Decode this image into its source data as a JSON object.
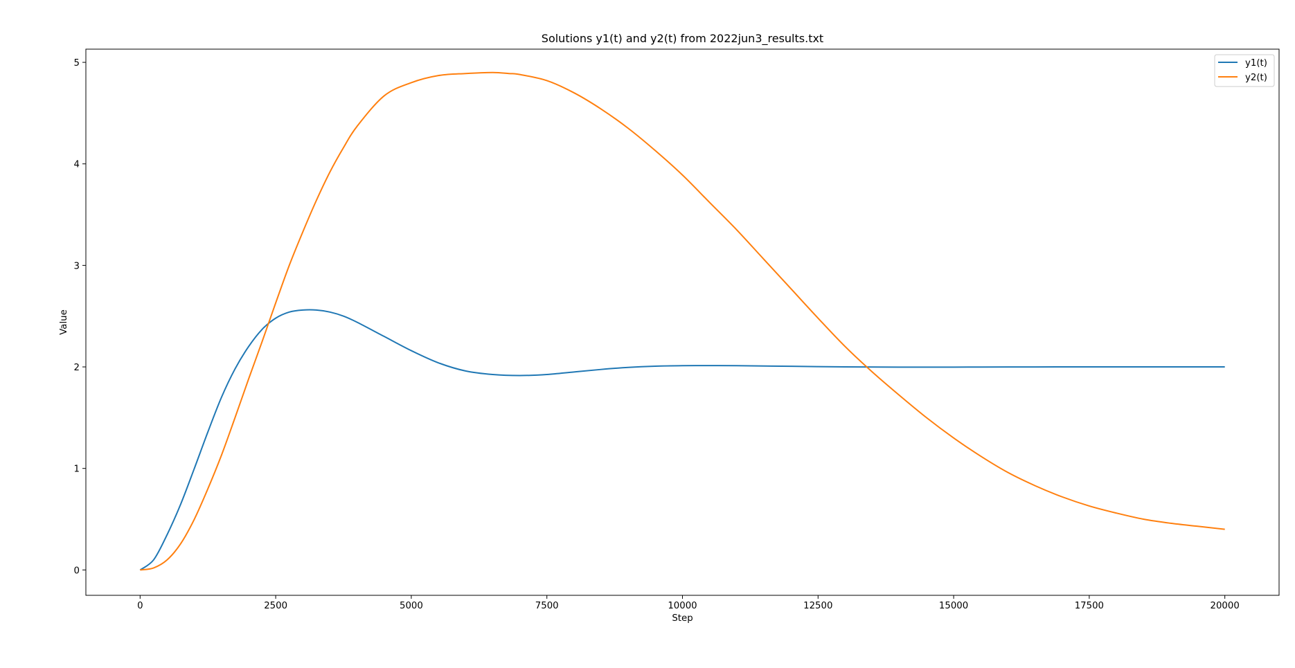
{
  "chart_data": {
    "type": "line",
    "title": "Solutions y1(t) and y2(t) from 2022jun3_results.txt",
    "xlabel": "Step",
    "ylabel": "Value",
    "xlim": [
      -1000,
      21000
    ],
    "ylim": [
      -0.25,
      5.13
    ],
    "xticks": [
      0,
      2500,
      5000,
      7500,
      10000,
      12500,
      15000,
      17500,
      20000
    ],
    "yticks": [
      0,
      1,
      2,
      3,
      4,
      5
    ],
    "grid": false,
    "legend_position": "top-right",
    "series": [
      {
        "name": "y1(t)",
        "color": "#1f77b4",
        "x": [
          0,
          250,
          500,
          750,
          1000,
          1250,
          1500,
          1750,
          2000,
          2250,
          2500,
          2750,
          3000,
          3250,
          3500,
          3750,
          4000,
          4500,
          5000,
          5500,
          6000,
          6500,
          7000,
          7500,
          8000,
          8500,
          9000,
          9500,
          10000,
          10500,
          11000,
          12000,
          13000,
          14000,
          15000,
          16000,
          17000,
          18000,
          19000,
          20000
        ],
        "y": [
          0.0,
          0.1,
          0.35,
          0.65,
          1.0,
          1.36,
          1.7,
          1.98,
          2.2,
          2.37,
          2.48,
          2.54,
          2.56,
          2.56,
          2.54,
          2.5,
          2.44,
          2.3,
          2.16,
          2.04,
          1.96,
          1.925,
          1.915,
          1.925,
          1.95,
          1.975,
          1.995,
          2.007,
          2.012,
          2.013,
          2.012,
          2.006,
          2.0,
          1.998,
          1.998,
          1.999,
          2.0,
          2.0,
          2.0,
          2.0
        ]
      },
      {
        "name": "y2(t)",
        "color": "#ff7f0e",
        "x": [
          0,
          250,
          500,
          750,
          1000,
          1250,
          1500,
          1750,
          2000,
          2250,
          2500,
          2750,
          3000,
          3250,
          3500,
          3750,
          4000,
          4500,
          5000,
          5500,
          6000,
          6500,
          6800,
          7000,
          7500,
          8000,
          8500,
          9000,
          9500,
          10000,
          10500,
          11000,
          11500,
          12000,
          12500,
          13000,
          13500,
          14000,
          14500,
          15000,
          15500,
          16000,
          16500,
          17000,
          17500,
          18000,
          18500,
          19000,
          19500,
          20000
        ],
        "y": [
          0.0,
          0.02,
          0.1,
          0.26,
          0.5,
          0.8,
          1.13,
          1.5,
          1.88,
          2.25,
          2.63,
          3.0,
          3.33,
          3.64,
          3.92,
          4.16,
          4.37,
          4.67,
          4.8,
          4.87,
          4.89,
          4.9,
          4.89,
          4.88,
          4.82,
          4.7,
          4.54,
          4.35,
          4.13,
          3.89,
          3.62,
          3.35,
          3.06,
          2.77,
          2.48,
          2.2,
          1.95,
          1.72,
          1.5,
          1.3,
          1.12,
          0.96,
          0.83,
          0.72,
          0.63,
          0.56,
          0.5,
          0.46,
          0.43,
          0.4
        ]
      }
    ]
  }
}
